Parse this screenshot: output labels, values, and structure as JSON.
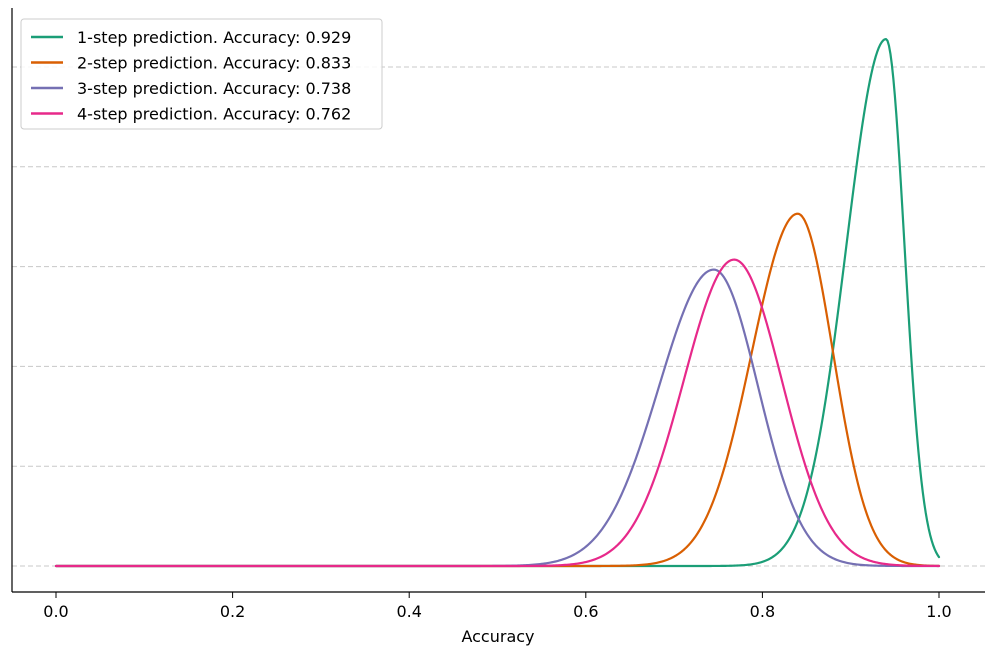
{
  "chart_data": {
    "type": "line",
    "xlabel": "Accuracy",
    "ylabel": "",
    "xlim": [
      -0.05,
      1.05
    ],
    "x_ticks": [
      "0.0",
      "0.2",
      "0.4",
      "0.6",
      "0.8",
      "1.0"
    ],
    "ylim": [
      0,
      1.0
    ],
    "y_grid_levels": [
      0,
      0.2,
      0.4,
      0.6,
      0.8,
      1.0
    ],
    "grid": "horizontal dashed",
    "legend_position": "top-left",
    "series": [
      {
        "name": "1-step prediction. Accuracy: 0.929",
        "color": "#1b9e77",
        "peak_x": 0.94,
        "peak_y": 1.056,
        "sigma_left": 0.045,
        "sigma_right": 0.021,
        "end_x": 1.0
      },
      {
        "name": "2-step prediction. Accuracy: 0.833",
        "color": "#d95f02",
        "peak_x": 0.84,
        "peak_y": 0.706,
        "sigma_left": 0.052,
        "sigma_right": 0.04,
        "end_x": 1.0
      },
      {
        "name": "3-step prediction. Accuracy: 0.738",
        "color": "#7570b3",
        "peak_x": 0.745,
        "peak_y": 0.594,
        "sigma_left": 0.062,
        "sigma_right": 0.05,
        "end_x": 1.0
      },
      {
        "name": "4-step prediction. Accuracy: 0.762",
        "color": "#e7298a",
        "peak_x": 0.768,
        "peak_y": 0.614,
        "sigma_left": 0.057,
        "sigma_right": 0.054,
        "end_x": 1.0
      }
    ]
  }
}
